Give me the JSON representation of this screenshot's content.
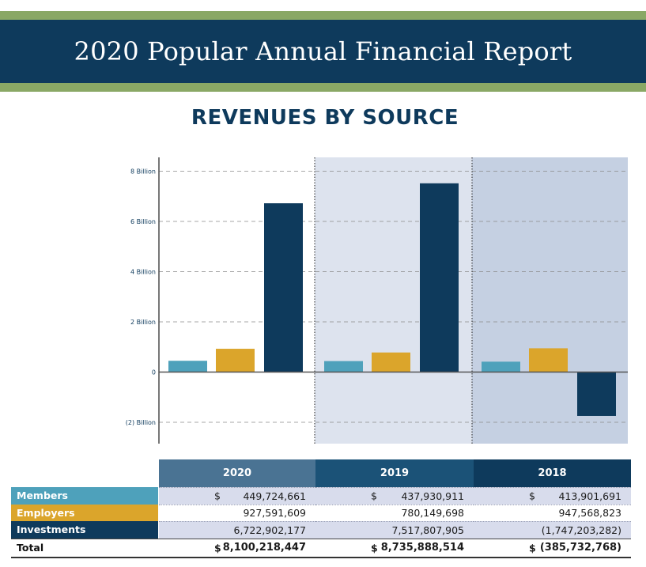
{
  "header": {
    "title": "2020 Popular Annual Financial Report"
  },
  "subtitle": "REVENUES BY SOURCE",
  "colors": {
    "members": "#4ea1bb",
    "employers": "#dba52b",
    "investments": "#0e3a5c",
    "header_bg": "#0e3a5c",
    "band": "#8aa865"
  },
  "chart_data": {
    "type": "bar",
    "title": "REVENUES BY SOURCE",
    "categories": [
      "2020",
      "2019",
      "2018"
    ],
    "series": [
      {
        "name": "Members",
        "values": [
          449724661,
          437930911,
          413901691
        ]
      },
      {
        "name": "Employers",
        "values": [
          927591609,
          780149698,
          947568823
        ]
      },
      {
        "name": "Investments",
        "values": [
          6722902177,
          7517807905,
          -1747203282
        ]
      }
    ],
    "ylim": [
      -2800000000,
      8500000000
    ],
    "yticks": [
      {
        "value": 8000000000,
        "label": "8 Billion"
      },
      {
        "value": 6000000000,
        "label": "6 Billion"
      },
      {
        "value": 4000000000,
        "label": "4 Billion"
      },
      {
        "value": 2000000000,
        "label": "2 Billion"
      },
      {
        "value": 0,
        "label": "0"
      },
      {
        "value": -2000000000,
        "label": "(2) Billion"
      }
    ],
    "grid": true,
    "legend": "none"
  },
  "table": {
    "columns": [
      "2020",
      "2019",
      "2018"
    ],
    "rows": [
      {
        "label": "Members",
        "dollar": [
          "$",
          "$",
          "$"
        ],
        "values": [
          "449,724,661",
          "437,930,911",
          "413,901,691"
        ]
      },
      {
        "label": "Employers",
        "dollar": [
          "",
          "",
          ""
        ],
        "values": [
          "927,591,609",
          "780,149,698",
          "947,568,823"
        ]
      },
      {
        "label": "Investments",
        "dollar": [
          "",
          "",
          ""
        ],
        "values": [
          "6,722,902,177",
          "7,517,807,905",
          "(1,747,203,282)"
        ]
      }
    ],
    "total": {
      "label": "Total",
      "dollar": [
        "$",
        "$",
        "$"
      ],
      "values": [
        "8,100,218,447",
        "8,735,888,514",
        "(385,732,768)"
      ]
    }
  }
}
